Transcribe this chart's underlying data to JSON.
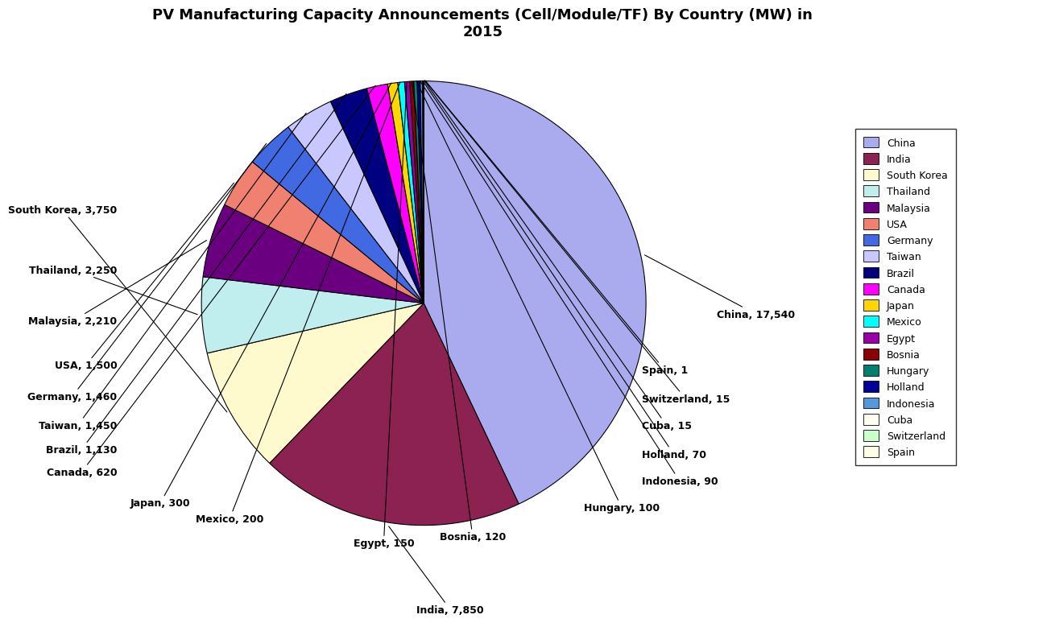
{
  "title": "PV Manufacturing Capacity Announcements (Cell/Module/TF) By Country (MW) in\n2015",
  "countries": [
    "China",
    "India",
    "South Korea",
    "Thailand",
    "Malaysia",
    "USA",
    "Germany",
    "Taiwan",
    "Brazil",
    "Canada",
    "Japan",
    "Mexico",
    "Egypt",
    "Bosnia",
    "Hungary",
    "Indonesia",
    "Holland",
    "Cuba",
    "Switzerland",
    "Spain"
  ],
  "values": [
    17540,
    7850,
    3750,
    2250,
    2210,
    1500,
    1460,
    1450,
    1130,
    620,
    300,
    200,
    150,
    120,
    100,
    90,
    70,
    15,
    15,
    1
  ],
  "colors": [
    "#AAAAEE",
    "#8B2252",
    "#FFFACD",
    "#C0EEEE",
    "#6A0080",
    "#F08070",
    "#4169E1",
    "#C8C8FF",
    "#000080",
    "#FF00FF",
    "#FFD700",
    "#00FFFF",
    "#9900AA",
    "#8B0000",
    "#008070",
    "#000099",
    "#5599DD",
    "#FFFFF0",
    "#CCFFCC",
    "#FFFFE8"
  ],
  "legend_labels": [
    "China",
    "India",
    "South Korea",
    "Thailand",
    "Malaysia",
    "USA",
    "Germany",
    "Taiwan",
    "Brazil",
    "Canada",
    "Japan",
    "Mexico",
    "Egypt",
    "Bosnia",
    "Hungary",
    "Holland",
    "Indonesia",
    "Cuba",
    "Switzerland",
    "Spain"
  ],
  "label_positions": {
    "China": [
      1.32,
      -0.05,
      "left"
    ],
    "India": [
      0.12,
      -1.38,
      "center"
    ],
    "South Korea": [
      -1.38,
      0.42,
      "right"
    ],
    "Thailand": [
      -1.38,
      0.15,
      "right"
    ],
    "Malaysia": [
      -1.38,
      -0.08,
      "right"
    ],
    "USA": [
      -1.38,
      -0.28,
      "right"
    ],
    "Germany": [
      -1.38,
      -0.42,
      "right"
    ],
    "Taiwan": [
      -1.38,
      -0.55,
      "right"
    ],
    "Brazil": [
      -1.38,
      -0.66,
      "right"
    ],
    "Canada": [
      -1.38,
      -0.76,
      "right"
    ],
    "Japan": [
      -1.05,
      -0.9,
      "right"
    ],
    "Mexico": [
      -0.72,
      -0.97,
      "right"
    ],
    "Egypt": [
      -0.18,
      -1.08,
      "center"
    ],
    "Bosnia": [
      0.22,
      -1.05,
      "center"
    ],
    "Hungary": [
      0.72,
      -0.92,
      "left"
    ],
    "Indonesia": [
      0.98,
      -0.8,
      "left"
    ],
    "Holland": [
      0.98,
      -0.68,
      "left"
    ],
    "Cuba": [
      0.98,
      -0.55,
      "left"
    ],
    "Switzerland": [
      0.98,
      -0.43,
      "left"
    ],
    "Spain": [
      0.98,
      -0.3,
      "left"
    ]
  }
}
